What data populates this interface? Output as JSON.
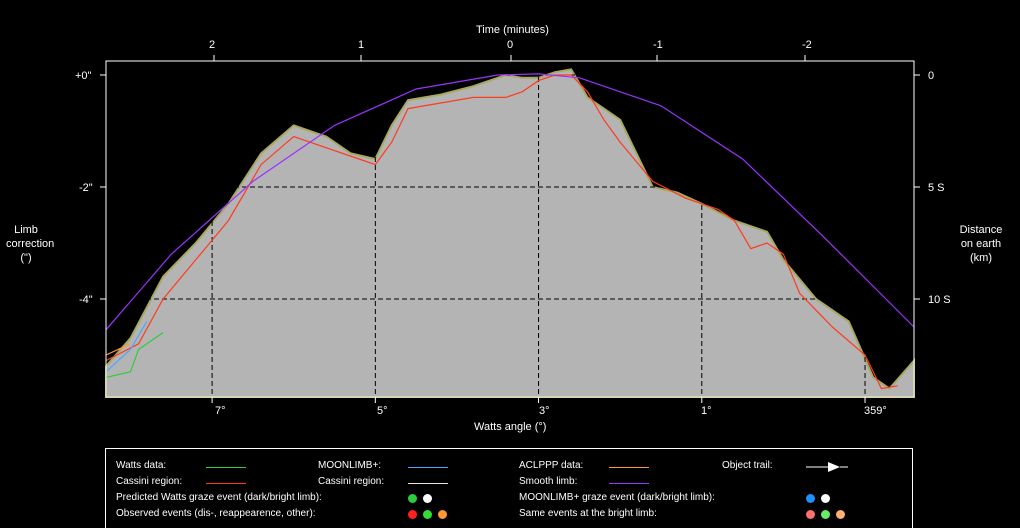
{
  "chart_data": {
    "type": "line",
    "top_axis": {
      "label": "Time (minutes)",
      "ticks": [
        "2",
        "1",
        "0",
        "-1",
        "-2"
      ]
    },
    "left_axis": {
      "label_lines": [
        "Limb",
        "correction",
        "(\")"
      ],
      "ticks": [
        "+0\"",
        "-2\"",
        "-4\""
      ]
    },
    "right_axis": {
      "label_lines": [
        "Distance",
        "on earth",
        "(km)"
      ],
      "ticks": [
        "0",
        "5 S",
        "10 S"
      ]
    },
    "bottom_axis": {
      "label": "Watts angle (°)",
      "ticks": [
        "7°",
        "5°",
        "3°",
        "1°",
        "359°"
      ]
    },
    "ylim": [
      -5.75,
      0.25
    ],
    "xlim_watts": [
      8.3,
      358.4
    ],
    "grid": true,
    "profile_fill_color": "#b4b4b4",
    "series": [
      {
        "name": "Watts data",
        "color": "#2ecc40",
        "x": [
          8.3,
          8.0,
          7.9,
          7.6
        ],
        "y": [
          -5.4,
          -5.3,
          -4.9,
          -4.6
        ]
      },
      {
        "name": "Cassini region",
        "color": "#ff3b1f",
        "x": [
          8.3,
          7.9,
          7.6,
          7.2,
          6.8,
          6.4,
          6.0,
          5.6,
          5.2,
          5.0,
          4.8,
          4.6,
          4.2,
          3.8,
          3.4,
          3.2,
          3.0,
          2.8,
          2.6,
          2.4,
          2.2,
          2.0,
          1.6,
          1.2,
          0.8,
          0.6,
          0.4,
          0.2,
          0.0,
          359.8,
          359.4,
          359.0,
          358.8,
          358.6
        ],
        "y": [
          -5.1,
          -4.8,
          -4.0,
          -3.3,
          -2.6,
          -1.6,
          -1.1,
          -1.3,
          -1.5,
          -1.6,
          -1.2,
          -0.6,
          -0.5,
          -0.4,
          -0.4,
          -0.3,
          -0.1,
          0.0,
          0.0,
          -0.3,
          -0.8,
          -1.2,
          -1.9,
          -2.2,
          -2.4,
          -2.6,
          -3.1,
          -3.0,
          -3.2,
          -3.9,
          -4.5,
          -5.0,
          -5.6,
          -5.55
        ]
      },
      {
        "name": "MOONLIMB+",
        "color": "#4da6ff",
        "x": [
          8.3,
          8.0,
          7.8
        ],
        "y": [
          -5.3,
          -4.9,
          -4.4
        ]
      },
      {
        "name": "ACLPPP data",
        "color": "#ff9933",
        "x": [
          8.3,
          8.0
        ],
        "y": [
          -5.0,
          -4.8
        ]
      },
      {
        "name": "Smooth limb",
        "color": "#9933ff",
        "x": [
          8.3,
          7.5,
          6.5,
          5.5,
          4.5,
          3.5,
          3.0,
          2.5,
          1.5,
          0.5,
          359.5,
          358.4
        ],
        "y": [
          -4.55,
          -3.2,
          -1.9,
          -0.9,
          -0.25,
          0.0,
          0.02,
          -0.05,
          -0.55,
          -1.5,
          -2.9,
          -4.5
        ]
      }
    ],
    "profile": {
      "x": [
        8.3,
        8.0,
        7.6,
        7.2,
        6.8,
        6.4,
        6.0,
        5.6,
        5.3,
        5.0,
        4.8,
        4.6,
        4.2,
        3.8,
        3.4,
        3.2,
        3.0,
        2.8,
        2.6,
        2.4,
        2.2,
        2.0,
        1.6,
        1.3,
        1.0,
        0.6,
        0.4,
        0.2,
        0.0,
        359.6,
        359.2,
        358.9,
        358.7,
        358.4
      ],
      "y": [
        -5.2,
        -4.7,
        -3.6,
        -3.0,
        -2.3,
        -1.4,
        -0.9,
        -1.1,
        -1.4,
        -1.5,
        -0.9,
        -0.45,
        -0.35,
        -0.2,
        0.0,
        -0.05,
        -0.05,
        0.05,
        0.1,
        -0.4,
        -0.6,
        -0.8,
        -2.0,
        -2.1,
        -2.3,
        -2.6,
        -2.7,
        -2.8,
        -3.3,
        -4.0,
        -4.4,
        -5.4,
        -5.6,
        -5.1
      ]
    }
  },
  "legend": {
    "items": [
      {
        "label": "Watts data:",
        "kind": "line",
        "color": "#2ecc40"
      },
      {
        "label": "MOONLIMB+:",
        "kind": "line",
        "color": "#4da6ff"
      },
      {
        "label": "ACLPPP data:",
        "kind": "line",
        "color": "#ff9933"
      },
      {
        "label": "Object trail:",
        "kind": "arrow",
        "color": "#ffffff"
      },
      {
        "label": "Cassini region:",
        "kind": "line",
        "color": "#ff3b1f"
      },
      {
        "label": "Cassini region:",
        "kind": "line",
        "color": "#e8e8c8"
      },
      {
        "label": "Smooth limb:",
        "kind": "line",
        "color": "#9933ff"
      },
      {
        "label": "Predicted Watts graze event (dark/bright limb):",
        "kind": "dots",
        "colors": [
          "#2ecc40",
          "#ffffff"
        ]
      },
      {
        "label": "MOONLIMB+ graze event (dark/bright limb):",
        "kind": "dots",
        "colors": [
          "#1e90ff",
          "#ffffff"
        ]
      },
      {
        "label": "Observed events (dis-, reappearence, other):",
        "kind": "dots",
        "colors": [
          "#ff2020",
          "#33dd33",
          "#ff9933"
        ]
      },
      {
        "label": "Same events at the bright limb:",
        "kind": "dots",
        "colors": [
          "#ff7070",
          "#66ee66",
          "#ffb070"
        ]
      }
    ]
  }
}
